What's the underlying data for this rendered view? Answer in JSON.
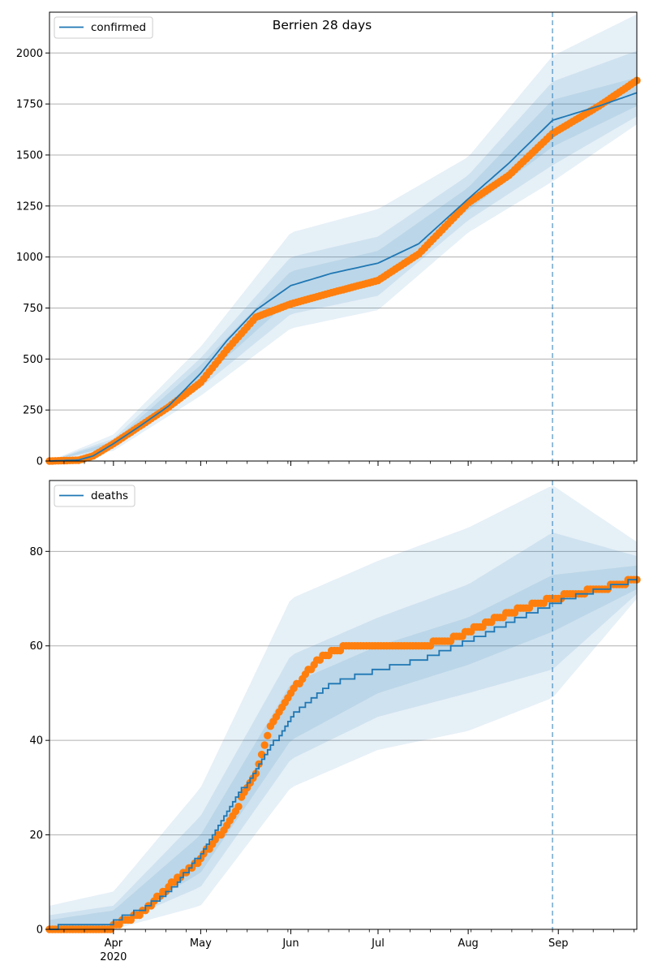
{
  "figure": {
    "title": "Berrien 28 days"
  },
  "colors": {
    "model": "#1f77b4",
    "observed": "#ff7f0e",
    "band": "#1f77b4",
    "grid": "#b0b0b0",
    "forecast_line": "#1f77b4"
  },
  "chart_data": [
    {
      "type": "line",
      "panel": "confirmed",
      "title": "Berrien 28 days",
      "xlabel": "",
      "ylabel": "",
      "x_range": [
        "2020-03-10",
        "2020-09-28"
      ],
      "ylim": [
        0,
        2200
      ],
      "yticks": [
        0,
        250,
        500,
        750,
        1000,
        1250,
        1500,
        1750,
        2000
      ],
      "grid": "y",
      "legend": {
        "position": "top-left",
        "entries": [
          "confirmed"
        ]
      },
      "forecast_start": "2020-08-30",
      "series": [
        {
          "name": "confirmed",
          "role": "model median",
          "points": [
            [
              "2020-03-10",
              0
            ],
            [
              "2020-03-20",
              5
            ],
            [
              "2020-03-25",
              25
            ],
            [
              "2020-04-01",
              85
            ],
            [
              "2020-04-10",
              170
            ],
            [
              "2020-04-20",
              270
            ],
            [
              "2020-05-01",
              430
            ],
            [
              "2020-05-10",
              590
            ],
            [
              "2020-05-20",
              740
            ],
            [
              "2020-06-01",
              860
            ],
            [
              "2020-06-15",
              920
            ],
            [
              "2020-07-01",
              970
            ],
            [
              "2020-07-15",
              1065
            ],
            [
              "2020-08-01",
              1285
            ],
            [
              "2020-08-15",
              1460
            ],
            [
              "2020-08-30",
              1670
            ],
            [
              "2020-09-15",
              1740
            ],
            [
              "2020-09-28",
              1805
            ]
          ]
        },
        {
          "role": "observed",
          "points": [
            [
              "2020-03-10",
              0
            ],
            [
              "2020-03-20",
              4
            ],
            [
              "2020-03-25",
              25
            ],
            [
              "2020-04-01",
              85
            ],
            [
              "2020-04-10",
              170
            ],
            [
              "2020-04-20",
              265
            ],
            [
              "2020-05-01",
              385
            ],
            [
              "2020-05-10",
              545
            ],
            [
              "2020-05-20",
              705
            ],
            [
              "2020-06-01",
              770
            ],
            [
              "2020-06-15",
              825
            ],
            [
              "2020-07-01",
              885
            ],
            [
              "2020-07-15",
              1015
            ],
            [
              "2020-08-01",
              1265
            ],
            [
              "2020-08-15",
              1400
            ],
            [
              "2020-08-30",
              1605
            ],
            [
              "2020-09-15",
              1740
            ],
            [
              "2020-09-28",
              1865
            ]
          ]
        }
      ],
      "bands": [
        {
          "lower": [
            [
              "2020-03-10",
              0
            ],
            [
              "2020-04-01",
              50
            ],
            [
              "2020-05-01",
              320
            ],
            [
              "2020-06-01",
              650
            ],
            [
              "2020-07-01",
              740
            ],
            [
              "2020-08-01",
              1120
            ],
            [
              "2020-08-30",
              1370
            ],
            [
              "2020-09-28",
              1650
            ]
          ],
          "upper": [
            [
              "2020-03-10",
              0
            ],
            [
              "2020-04-01",
              130
            ],
            [
              "2020-05-01",
              560
            ],
            [
              "2020-06-01",
              1120
            ],
            [
              "2020-07-01",
              1235
            ],
            [
              "2020-08-01",
              1490
            ],
            [
              "2020-08-30",
              1985
            ],
            [
              "2020-09-28",
              2190
            ]
          ]
        },
        {
          "lower": [
            [
              "2020-03-10",
              0
            ],
            [
              "2020-04-01",
              63
            ],
            [
              "2020-05-01",
              360
            ],
            [
              "2020-06-01",
              720
            ],
            [
              "2020-07-01",
              810
            ],
            [
              "2020-08-01",
              1180
            ],
            [
              "2020-08-30",
              1450
            ],
            [
              "2020-09-28",
              1690
            ]
          ],
          "upper": [
            [
              "2020-03-10",
              0
            ],
            [
              "2020-04-01",
              110
            ],
            [
              "2020-05-01",
              505
            ],
            [
              "2020-06-01",
              1000
            ],
            [
              "2020-07-01",
              1100
            ],
            [
              "2020-08-01",
              1400
            ],
            [
              "2020-08-30",
              1860
            ],
            [
              "2020-09-28",
              2010
            ]
          ]
        },
        {
          "lower": [
            [
              "2020-03-10",
              0
            ],
            [
              "2020-04-01",
              73
            ],
            [
              "2020-05-01",
              395
            ],
            [
              "2020-06-01",
              790
            ],
            [
              "2020-07-01",
              885
            ],
            [
              "2020-08-01",
              1230
            ],
            [
              "2020-08-30",
              1540
            ],
            [
              "2020-09-28",
              1740
            ]
          ],
          "upper": [
            [
              "2020-03-10",
              0
            ],
            [
              "2020-04-01",
              97
            ],
            [
              "2020-05-01",
              470
            ],
            [
              "2020-06-01",
              930
            ],
            [
              "2020-07-01",
              1030
            ],
            [
              "2020-08-01",
              1340
            ],
            [
              "2020-08-30",
              1770
            ],
            [
              "2020-09-28",
              1880
            ]
          ]
        }
      ]
    },
    {
      "type": "line",
      "panel": "deaths",
      "title": "",
      "xlabel": "",
      "ylabel": "",
      "x_range": [
        "2020-03-10",
        "2020-09-28"
      ],
      "ylim": [
        0,
        95
      ],
      "yticks": [
        0,
        20,
        40,
        60,
        80
      ],
      "grid": "y",
      "legend": {
        "position": "top-left",
        "entries": [
          "deaths"
        ]
      },
      "forecast_start": "2020-08-30",
      "x_tick_labels": [
        {
          "date": "2020-04-01",
          "label": "Apr",
          "sub": "2020"
        },
        {
          "date": "2020-05-01",
          "label": "May",
          "sub": ""
        },
        {
          "date": "2020-06-01",
          "label": "Jun",
          "sub": ""
        },
        {
          "date": "2020-07-01",
          "label": "Jul",
          "sub": ""
        },
        {
          "date": "2020-08-01",
          "label": "Aug",
          "sub": ""
        },
        {
          "date": "2020-09-01",
          "label": "Sep",
          "sub": ""
        }
      ],
      "series": [
        {
          "name": "deaths",
          "role": "model median",
          "points": [
            [
              "2020-03-10",
              0
            ],
            [
              "2020-03-15",
              1
            ],
            [
              "2020-03-31",
              1
            ],
            [
              "2020-04-01",
              2
            ],
            [
              "2020-04-10",
              4
            ],
            [
              "2020-04-20",
              8
            ],
            [
              "2020-05-01",
              16
            ],
            [
              "2020-05-10",
              25
            ],
            [
              "2020-05-20",
              34
            ],
            [
              "2020-06-01",
              45
            ],
            [
              "2020-06-15",
              52
            ],
            [
              "2020-07-01",
              55
            ],
            [
              "2020-07-15",
              57
            ],
            [
              "2020-08-01",
              61
            ],
            [
              "2020-08-15",
              65
            ],
            [
              "2020-08-30",
              69
            ],
            [
              "2020-09-15",
              72
            ],
            [
              "2020-09-28",
              74
            ]
          ]
        },
        {
          "role": "observed",
          "points": [
            [
              "2020-03-10",
              0
            ],
            [
              "2020-03-31",
              0
            ],
            [
              "2020-04-01",
              1
            ],
            [
              "2020-04-10",
              3
            ],
            [
              "2020-04-20",
              9
            ],
            [
              "2020-05-01",
              15
            ],
            [
              "2020-05-10",
              22
            ],
            [
              "2020-05-20",
              33
            ],
            [
              "2020-05-25",
              43
            ],
            [
              "2020-06-01",
              50
            ],
            [
              "2020-06-10",
              57
            ],
            [
              "2020-06-20",
              60
            ],
            [
              "2020-07-15",
              60
            ],
            [
              "2020-07-25",
              61
            ],
            [
              "2020-08-01",
              63
            ],
            [
              "2020-08-15",
              67
            ],
            [
              "2020-08-30",
              70
            ],
            [
              "2020-09-15",
              72
            ],
            [
              "2020-09-28",
              74
            ]
          ]
        }
      ],
      "bands": [
        {
          "lower": [
            [
              "2020-03-10",
              0
            ],
            [
              "2020-04-01",
              0
            ],
            [
              "2020-05-01",
              5
            ],
            [
              "2020-06-01",
              30
            ],
            [
              "2020-07-01",
              38
            ],
            [
              "2020-08-01",
              42
            ],
            [
              "2020-08-30",
              49
            ],
            [
              "2020-09-28",
              70
            ]
          ],
          "upper": [
            [
              "2020-03-10",
              5
            ],
            [
              "2020-04-01",
              8
            ],
            [
              "2020-05-01",
              30
            ],
            [
              "2020-06-01",
              70
            ],
            [
              "2020-07-01",
              78
            ],
            [
              "2020-08-01",
              85
            ],
            [
              "2020-08-30",
              94
            ],
            [
              "2020-09-28",
              82
            ]
          ]
        },
        {
          "lower": [
            [
              "2020-03-10",
              0
            ],
            [
              "2020-04-01",
              1
            ],
            [
              "2020-05-01",
              9
            ],
            [
              "2020-06-01",
              36
            ],
            [
              "2020-07-01",
              45
            ],
            [
              "2020-08-01",
              50
            ],
            [
              "2020-08-30",
              55
            ],
            [
              "2020-09-28",
              71
            ]
          ],
          "upper": [
            [
              "2020-03-10",
              3
            ],
            [
              "2020-04-01",
              5
            ],
            [
              "2020-05-01",
              24
            ],
            [
              "2020-06-01",
              58
            ],
            [
              "2020-07-01",
              66
            ],
            [
              "2020-08-01",
              73
            ],
            [
              "2020-08-30",
              84
            ],
            [
              "2020-09-28",
              79
            ]
          ]
        },
        {
          "lower": [
            [
              "2020-03-10",
              0
            ],
            [
              "2020-04-01",
              1
            ],
            [
              "2020-05-01",
              12
            ],
            [
              "2020-06-01",
              40
            ],
            [
              "2020-07-01",
              50
            ],
            [
              "2020-08-01",
              56
            ],
            [
              "2020-08-30",
              63
            ],
            [
              "2020-09-28",
              72
            ]
          ],
          "upper": [
            [
              "2020-03-10",
              2
            ],
            [
              "2020-04-01",
              4
            ],
            [
              "2020-05-01",
              20
            ],
            [
              "2020-06-01",
              52
            ],
            [
              "2020-07-01",
              60
            ],
            [
              "2020-08-01",
              66
            ],
            [
              "2020-08-30",
              75
            ],
            [
              "2020-09-28",
              77
            ]
          ]
        }
      ]
    }
  ]
}
